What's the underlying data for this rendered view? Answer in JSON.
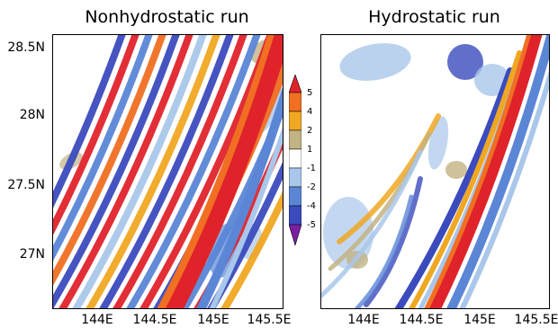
{
  "chart_data": [
    {
      "type": "heatmap",
      "title": "Nonhydrostatic run",
      "x_ticks": [
        "144E",
        "144.5E",
        "145E",
        "145.5E"
      ],
      "y_ticks": [
        "28.5N",
        "28N",
        "27.5N",
        "27N"
      ],
      "xlim": [
        143.6,
        145.6
      ],
      "ylim": [
        26.6,
        28.6
      ],
      "pattern": "many dense parallel SW-NE wave crests (red/blue alternating) trailing a broad red band, weak beige/yellow ahead"
    },
    {
      "type": "heatmap",
      "title": "Hydrostatic run",
      "x_ticks": [
        "144E",
        "144.5E",
        "145E",
        "145.5E"
      ],
      "xlim": [
        143.6,
        145.6
      ],
      "ylim": [
        26.6,
        28.6
      ],
      "pattern": "single strong SW-NE red band with blue flank; diffuse blue/yellow/beige patches and arc features to the west"
    }
  ],
  "colorbar": {
    "levels": [
      "5",
      "4",
      "2",
      "1",
      "-1",
      "-2",
      "-4",
      "-5"
    ],
    "colors": [
      "#7b1fa2",
      "#3b4bbd",
      "#5b86d6",
      "#a9c7ea",
      "#ffffff",
      "#c2b384",
      "#f0a722",
      "#f06f22",
      "#e0232b"
    ]
  }
}
